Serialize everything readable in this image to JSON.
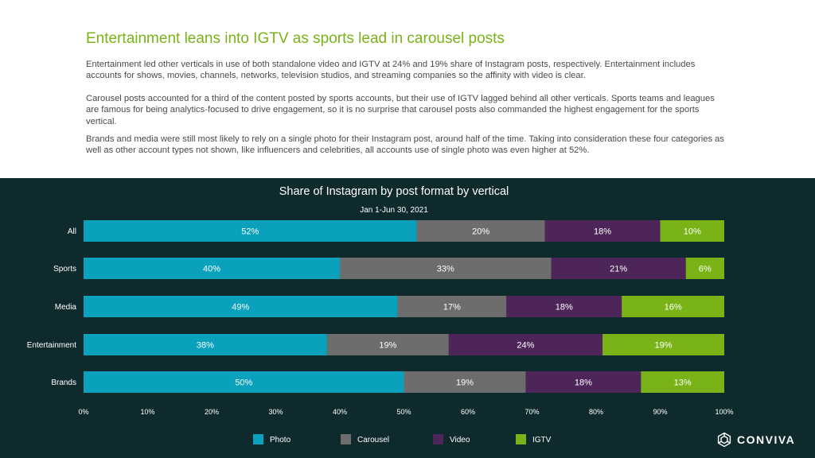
{
  "page": {
    "heading": "Entertainment leans into IGTV as sports lead in carousel posts",
    "paragraphs": [
      "Entertainment led other verticals in use of both standalone video and IGTV at 24% and 19% share of Instagram posts, respectively. Entertainment includes accounts for shows, movies, channels, networks, television studios, and streaming companies so the affinity with video is clear.",
      "Carousel posts accounted for a third of the content posted by sports accounts, but their use of IGTV lagged behind all other verticals. Sports teams and leagues are famous for being analytics-focused to drive engagement, so it is no surprise that carousel posts also commanded the highest engagement for the sports vertical.",
      "Brands and media were still most likely to rely on a single photo for their Instagram post, around half of the time. Taking into consideration these four categories as well as other account types not shown, like influencers and celebrities, all accounts use of single photo was even higher at 52%."
    ],
    "logo_text": "CONVIVA"
  },
  "colors": {
    "Photo": "#0aa1bd",
    "Carousel": "#6d6d6d",
    "Video": "#4e2559",
    "IGTV": "#7ab317",
    "background": "#0f2a2d",
    "heading": "#7ab317"
  },
  "chart_data": {
    "type": "bar",
    "orientation": "horizontal",
    "stacked": true,
    "title": "Share of Instagram by post format by vertical",
    "subtitle": "Jan 1-Jun 30, 2021",
    "categories": [
      "All",
      "Sports",
      "Media",
      "Entertainment",
      "Brands"
    ],
    "series": [
      {
        "name": "Photo",
        "values": [
          52,
          40,
          49,
          38,
          50
        ]
      },
      {
        "name": "Carousel",
        "values": [
          20,
          33,
          17,
          19,
          19
        ]
      },
      {
        "name": "Video",
        "values": [
          18,
          21,
          18,
          24,
          18
        ]
      },
      {
        "name": "IGTV",
        "values": [
          10,
          6,
          16,
          19,
          13
        ]
      }
    ],
    "xlim": [
      0,
      100
    ],
    "xticks": [
      "0%",
      "10%",
      "20%",
      "30%",
      "40%",
      "50%",
      "60%",
      "70%",
      "80%",
      "90%",
      "100%"
    ],
    "legend_position": "bottom",
    "grid": false
  }
}
